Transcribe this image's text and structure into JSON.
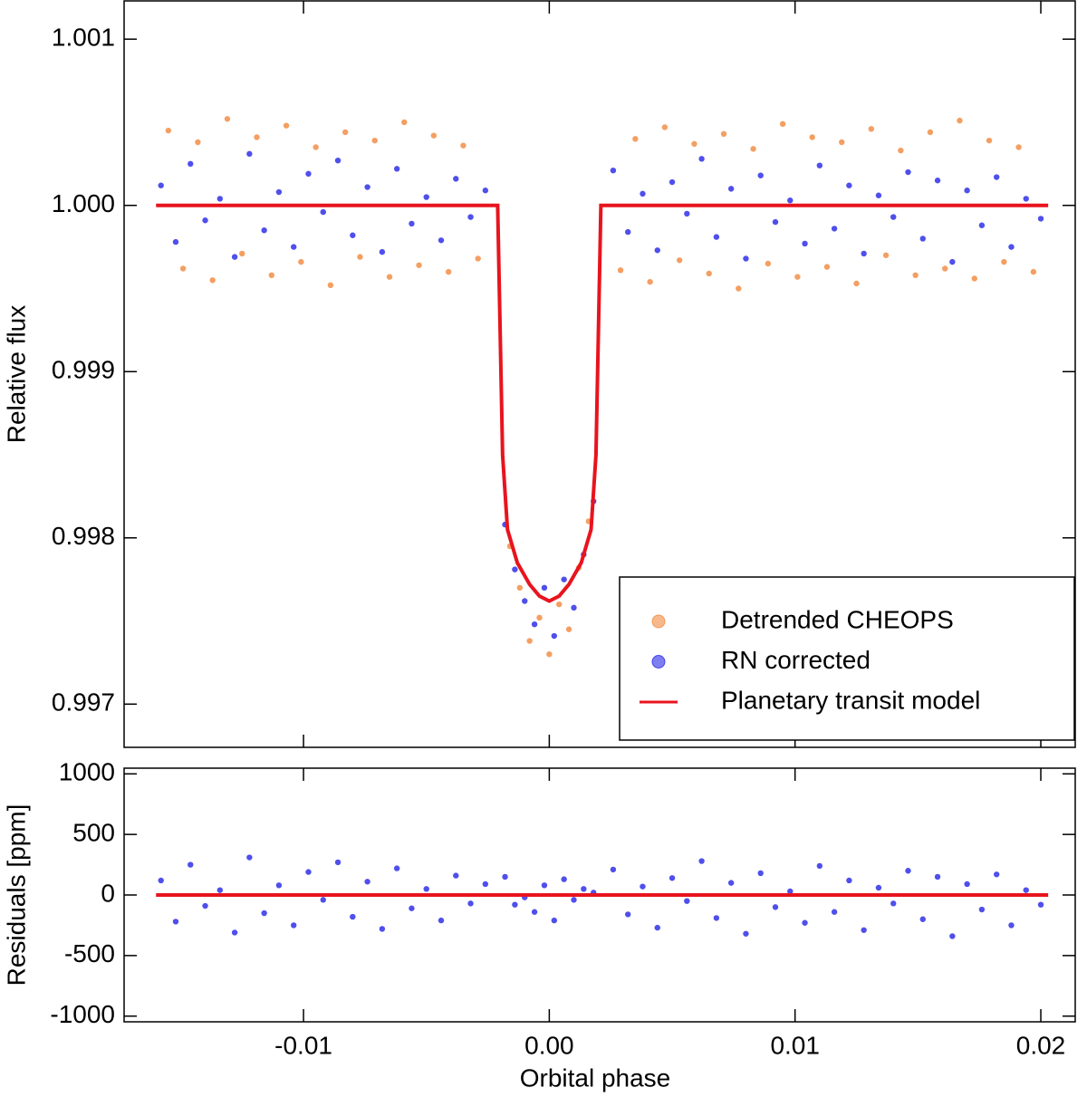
{
  "chart_data": [
    {
      "type": "scatter",
      "ylabel": "Relative flux",
      "xlim": [
        -0.0173,
        0.0214
      ],
      "ylim": [
        0.99674,
        1.00123
      ],
      "xticks": [
        -0.01,
        0,
        0.01,
        0.02
      ],
      "yticks": [
        0.997,
        0.998,
        0.999,
        {
          "value": 1,
          "label": "1.000"
        },
        1.001
      ],
      "legend": "lower right",
      "series": [
        {
          "name": "Detrended CHEOPS",
          "color": "#f07f2e",
          "type": "scatter",
          "x": [
            -0.0155,
            -0.0149,
            -0.0143,
            -0.0137,
            -0.0131,
            -0.0125,
            -0.0119,
            -0.0113,
            -0.0107,
            -0.0101,
            -0.0095,
            -0.0089,
            -0.0083,
            -0.0077,
            -0.0071,
            -0.0065,
            -0.0059,
            -0.0053,
            -0.0047,
            -0.0041,
            -0.0035,
            -0.0029,
            -0.0016,
            -0.0012,
            -0.0008,
            -0.0004,
            0,
            0.0004,
            0.0008,
            0.0012,
            0.0016,
            0.0029,
            0.0035,
            0.0041,
            0.0047,
            0.0053,
            0.0059,
            0.0065,
            0.0071,
            0.0077,
            0.0083,
            0.0089,
            0.0095,
            0.0101,
            0.0107,
            0.0113,
            0.0119,
            0.0125,
            0.0131,
            0.0137,
            0.0143,
            0.0149,
            0.0155,
            0.0161,
            0.0167,
            0.0173,
            0.0179,
            0.0185,
            0.0191,
            0.0197
          ],
          "values": [
            1.00045,
            0.99962,
            1.00038,
            0.99955,
            1.00052,
            0.99971,
            1.00041,
            0.99958,
            1.00048,
            0.99966,
            1.00035,
            0.99952,
            1.00044,
            0.99969,
            1.00039,
            0.99957,
            1.0005,
            0.99964,
            1.00042,
            0.9996,
            1.00036,
            0.99968,
            0.99795,
            0.9977,
            0.99738,
            0.99752,
            0.9973,
            0.9976,
            0.99745,
            0.99782,
            0.9981,
            0.99961,
            1.0004,
            0.99954,
            1.00047,
            0.99967,
            1.00037,
            0.99959,
            1.00043,
            0.9995,
            1.00034,
            0.99965,
            1.00049,
            0.99957,
            1.00041,
            0.99963,
            1.00038,
            0.99953,
            1.00046,
            0.9997,
            1.00033,
            0.99958,
            1.00044,
            0.99962,
            1.00051,
            0.99956,
            1.00039,
            0.99966,
            1.00035,
            0.9996
          ]
        },
        {
          "name": "RN corrected",
          "color": "#1414e6",
          "type": "scatter",
          "x": [
            -0.0158,
            -0.0152,
            -0.0146,
            -0.014,
            -0.0134,
            -0.0128,
            -0.0122,
            -0.0116,
            -0.011,
            -0.0104,
            -0.0098,
            -0.0092,
            -0.0086,
            -0.008,
            -0.0074,
            -0.0068,
            -0.0062,
            -0.0056,
            -0.005,
            -0.0044,
            -0.0038,
            -0.0032,
            -0.0026,
            -0.0018,
            -0.0014,
            -0.001,
            -0.0006,
            -0.0002,
            0.0002,
            0.0006,
            0.001,
            0.0014,
            0.0018,
            0.0026,
            0.0032,
            0.0038,
            0.0044,
            0.005,
            0.0056,
            0.0062,
            0.0068,
            0.0074,
            0.008,
            0.0086,
            0.0092,
            0.0098,
            0.0104,
            0.011,
            0.0116,
            0.0122,
            0.0128,
            0.0134,
            0.014,
            0.0146,
            0.0152,
            0.0158,
            0.0164,
            0.017,
            0.0176,
            0.0182,
            0.0188,
            0.0194,
            0.02
          ],
          "values": [
            1.00012,
            0.99978,
            1.00025,
            0.99991,
            1.00004,
            0.99969,
            1.00031,
            0.99985,
            1.00008,
            0.99975,
            1.00019,
            0.99996,
            1.00027,
            0.99982,
            1.00011,
            0.99972,
            1.00022,
            0.99989,
            1.00005,
            0.99979,
            1.00016,
            0.99993,
            1.00009,
            0.99808,
            0.99781,
            0.99762,
            0.99748,
            0.9977,
            0.99741,
            0.99775,
            0.99758,
            0.9979,
            0.99822,
            1.00021,
            0.99984,
            1.00007,
            0.99973,
            1.00014,
            0.99995,
            1.00028,
            0.99981,
            1.0001,
            0.99968,
            1.00018,
            0.9999,
            1.00003,
            0.99977,
            1.00024,
            0.99986,
            1.00012,
            0.99971,
            1.00006,
            0.99993,
            1.0002,
            0.9998,
            1.00015,
            0.99966,
            1.00009,
            0.99988,
            1.00017,
            0.99975,
            1.00004,
            0.99992
          ]
        },
        {
          "name": "Planetary transit model",
          "color": "#e8141e",
          "type": "line",
          "x": [
            -0.016,
            -0.0021,
            -0.0019,
            -0.0017,
            -0.0013,
            -0.0008,
            -0.0004,
            0,
            0.0004,
            0.0008,
            0.0013,
            0.0017,
            0.0019,
            0.0021,
            0.0203
          ],
          "values": [
            1,
            1,
            0.9985,
            0.99805,
            0.99785,
            0.99772,
            0.99765,
            0.99762,
            0.99765,
            0.99772,
            0.99785,
            0.99805,
            0.9985,
            1,
            1
          ]
        }
      ]
    },
    {
      "type": "scatter",
      "ylabel": "Residuals [ppm]",
      "xlabel": "Orbital phase",
      "xlim": [
        -0.0173,
        0.0214
      ],
      "ylim": [
        -1047,
        1047
      ],
      "xticks": [
        -0.01,
        {
          "value": 0,
          "label": "0.00"
        },
        0.01,
        0.02
      ],
      "yticks": [
        -1000,
        -500,
        0,
        500,
        1000
      ],
      "series": [
        {
          "color": "#1414e6",
          "type": "scatter",
          "x": [
            -0.0158,
            -0.0152,
            -0.0146,
            -0.014,
            -0.0134,
            -0.0128,
            -0.0122,
            -0.0116,
            -0.011,
            -0.0104,
            -0.0098,
            -0.0092,
            -0.0086,
            -0.008,
            -0.0074,
            -0.0068,
            -0.0062,
            -0.0056,
            -0.005,
            -0.0044,
            -0.0038,
            -0.0032,
            -0.0026,
            -0.0018,
            -0.0014,
            -0.001,
            -0.0006,
            -0.0002,
            0.0002,
            0.0006,
            0.001,
            0.0014,
            0.0018,
            0.0026,
            0.0032,
            0.0038,
            0.0044,
            0.005,
            0.0056,
            0.0062,
            0.0068,
            0.0074,
            0.008,
            0.0086,
            0.0092,
            0.0098,
            0.0104,
            0.011,
            0.0116,
            0.0122,
            0.0128,
            0.0134,
            0.014,
            0.0146,
            0.0152,
            0.0158,
            0.0164,
            0.017,
            0.0176,
            0.0182,
            0.0188,
            0.0194,
            0.02
          ],
          "values": [
            120,
            -220,
            250,
            -90,
            40,
            -310,
            310,
            -150,
            80,
            -250,
            190,
            -40,
            270,
            -180,
            110,
            -280,
            220,
            -110,
            50,
            -210,
            160,
            -70,
            90,
            150,
            -80,
            -20,
            -140,
            80,
            -210,
            130,
            -40,
            50,
            20,
            210,
            -160,
            70,
            -270,
            140,
            -50,
            280,
            -190,
            100,
            -320,
            180,
            -100,
            30,
            -230,
            240,
            -140,
            120,
            -290,
            60,
            -70,
            200,
            -200,
            150,
            -340,
            90,
            -120,
            170,
            -250,
            40,
            -80
          ]
        },
        {
          "color": "#e8141e",
          "type": "line",
          "x": [
            -0.016,
            0.0203
          ],
          "values": [
            0,
            0
          ]
        }
      ]
    }
  ]
}
